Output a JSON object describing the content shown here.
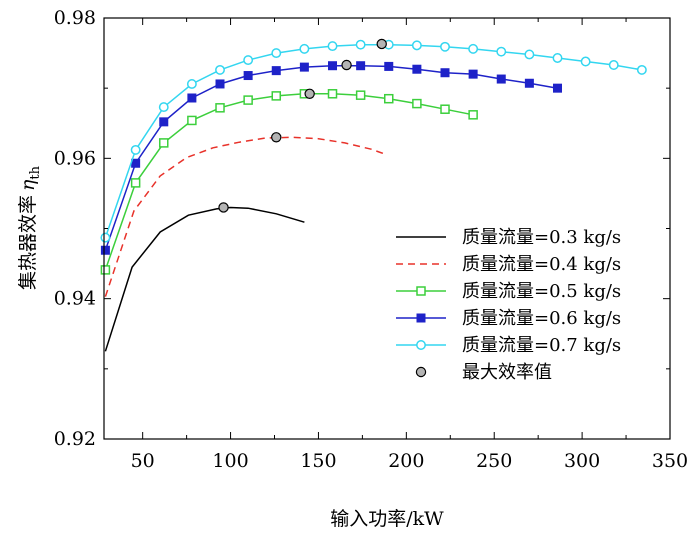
{
  "chart_data": {
    "type": "line",
    "title": "",
    "xlabel": "输入功率/kW",
    "ylabel_main": "集热器效率",
    "ylabel_symbol": "η",
    "ylabel_subscript": "th",
    "xlim": [
      28,
      350
    ],
    "ylim": [
      0.92,
      0.98
    ],
    "xticks": [
      50,
      100,
      150,
      200,
      250,
      300,
      350
    ],
    "yticks": [
      0.92,
      0.94,
      0.96,
      0.98
    ],
    "xtick_labels": [
      "50",
      "100",
      "150",
      "200",
      "250",
      "300",
      "350"
    ],
    "ytick_labels": [
      "0.92",
      "0.94",
      "0.96",
      "0.98"
    ],
    "grid": false,
    "legend_position": "right",
    "series": [
      {
        "name": "质量流量=0.3 kg/s",
        "color": "#000000",
        "line": "solid",
        "marker": "none",
        "x": [
          28.8,
          44,
          60,
          76,
          92,
          100,
          110,
          126,
          142
        ],
        "y": [
          0.9325,
          0.9445,
          0.9495,
          0.9519,
          0.9528,
          0.953,
          0.9529,
          0.9521,
          0.9509
        ]
      },
      {
        "name": "质量流量=0.4 kg/s",
        "color": "#e8322a",
        "line": "dashed",
        "marker": "none",
        "x": [
          28.8,
          45,
          60,
          75,
          90,
          105,
          120,
          135,
          150,
          165,
          180,
          189
        ],
        "y": [
          0.9403,
          0.9525,
          0.9575,
          0.9601,
          0.9615,
          0.9623,
          0.9629,
          0.963,
          0.9628,
          0.9622,
          0.9613,
          0.9605
        ]
      },
      {
        "name": "质量流量=0.5 kg/s",
        "color": "#3ccf3c",
        "line": "solid",
        "marker": "square-open",
        "x": [
          28.8,
          46,
          62,
          78,
          94,
          110,
          126,
          142,
          158,
          174,
          190,
          206,
          222,
          238
        ],
        "y": [
          0.9441,
          0.9565,
          0.9622,
          0.9654,
          0.9672,
          0.9683,
          0.9689,
          0.9692,
          0.9692,
          0.969,
          0.9685,
          0.9678,
          0.967,
          0.9662
        ]
      },
      {
        "name": "质量流量=0.6 kg/s",
        "color": "#1e22c8",
        "line": "solid",
        "marker": "square-filled",
        "x": [
          28.8,
          46,
          62,
          78,
          94,
          110,
          126,
          142,
          158,
          174,
          190,
          206,
          222,
          238,
          254,
          270,
          286
        ],
        "y": [
          0.9469,
          0.9593,
          0.9652,
          0.9686,
          0.9706,
          0.9718,
          0.9725,
          0.973,
          0.9732,
          0.9732,
          0.9731,
          0.9727,
          0.9722,
          0.972,
          0.9713,
          0.9707,
          0.97
        ]
      },
      {
        "name": "质量流量=0.7 kg/s",
        "color": "#33d6f0",
        "line": "solid",
        "marker": "circle-open",
        "x": [
          28.8,
          46,
          62,
          78,
          94,
          110,
          126,
          142,
          158,
          174,
          190,
          206,
          222,
          238,
          254,
          270,
          286,
          302,
          318,
          334
        ],
        "y": [
          0.9487,
          0.9612,
          0.9673,
          0.9706,
          0.9726,
          0.974,
          0.975,
          0.9756,
          0.976,
          0.9762,
          0.9762,
          0.9761,
          0.9759,
          0.9756,
          0.9752,
          0.9748,
          0.9743,
          0.9738,
          0.9733,
          0.9726
        ]
      }
    ],
    "max_points": {
      "name": "最大效率值",
      "color": "#b4b4b4",
      "x": [
        96,
        126,
        145,
        166,
        186
      ],
      "y": [
        0.953,
        0.963,
        0.9692,
        0.9733,
        0.9763
      ]
    }
  }
}
